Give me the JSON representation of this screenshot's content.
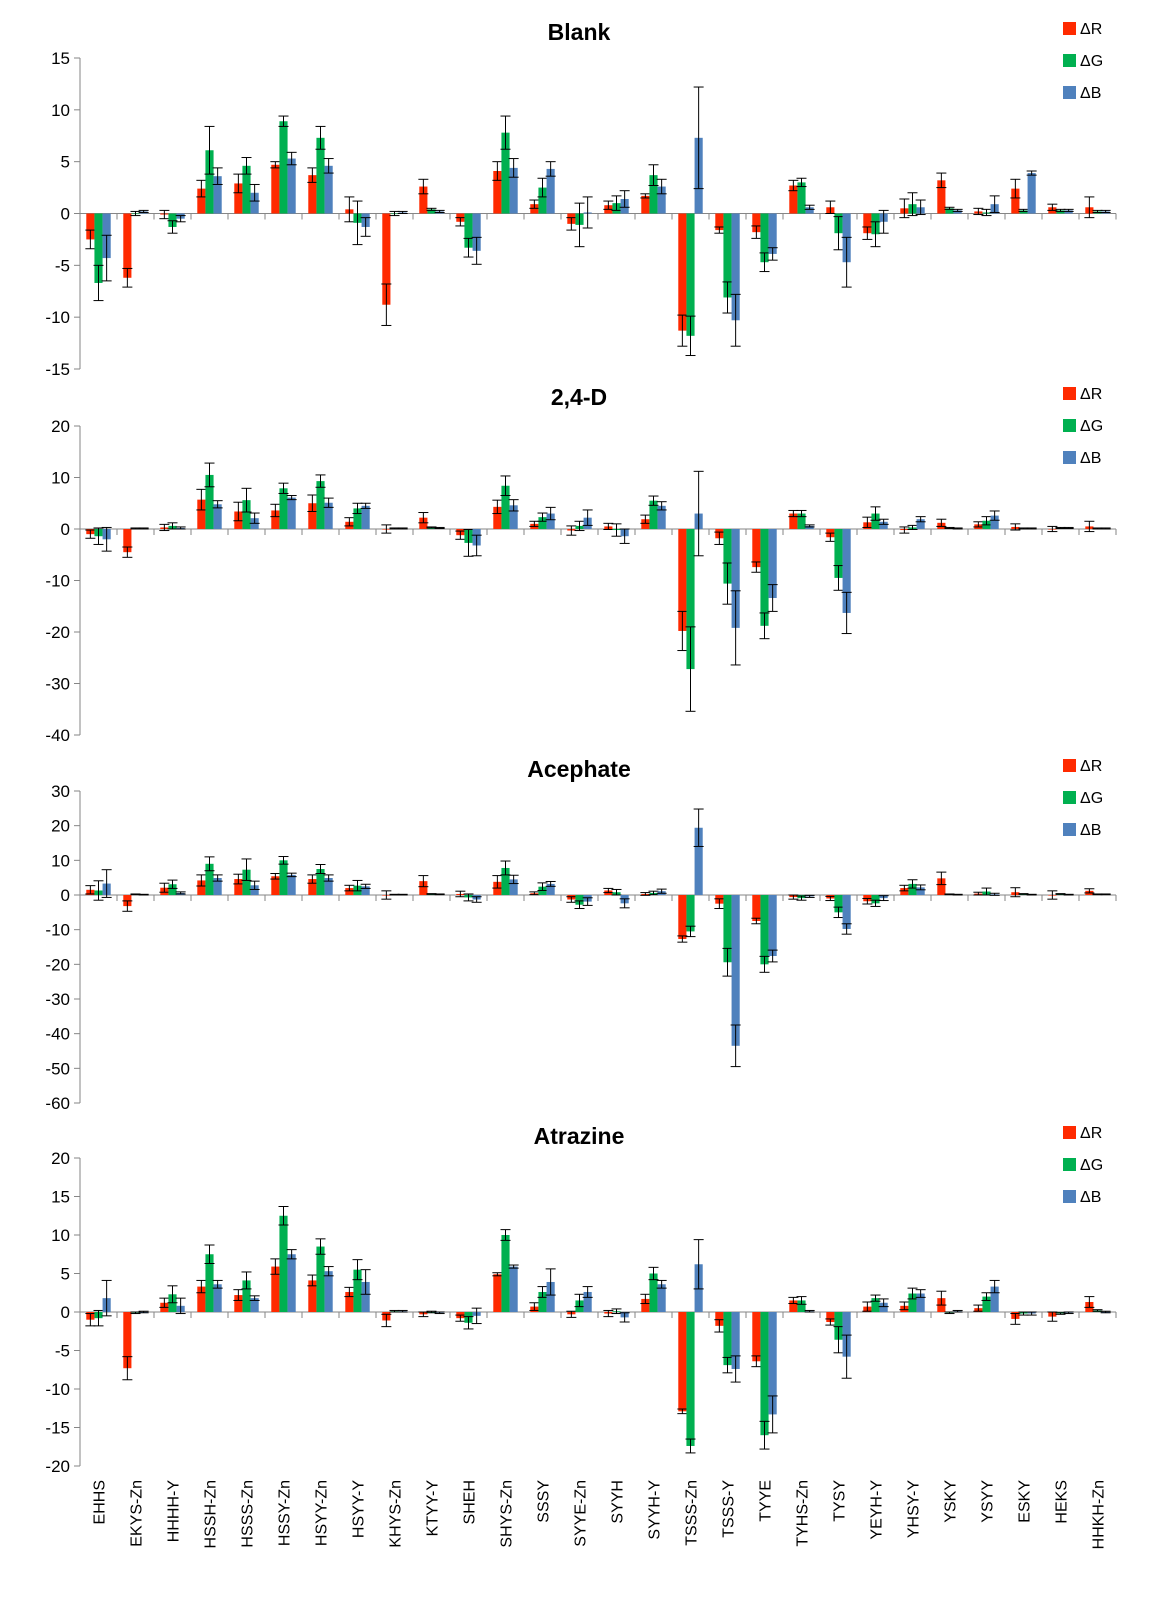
{
  "colors": {
    "ΔR": "#ff2a00",
    "ΔG": "#00b050",
    "ΔB": "#4f81bd"
  },
  "chart_data": [
    {
      "type": "bar",
      "title": "Blank",
      "ylim": [
        -15,
        15
      ],
      "yticks": [
        -15,
        -10,
        -5,
        0,
        5,
        10,
        15
      ],
      "categories": [
        "EHHS",
        "EKYS-Zn",
        "HHHH-Y",
        "HSSH-Zn",
        "HSSS-Zn",
        "HSSY-Zn",
        "HSYY-Zn",
        "HSYY-Y",
        "KHYS-Zn",
        "KTYY-Y",
        "SHEH",
        "SHYS-Zn",
        "SSSY",
        "SYYE-Zn",
        "SYYH",
        "SYYH-Y",
        "TSSS-Zn",
        "TSSS-Y",
        "TYYE",
        "TYHS-Zn",
        "TYSY",
        "YEYH-Y",
        "YHSY-Y",
        "YSKY",
        "YSYY",
        "ESKY",
        "HEKS",
        "HHKH-Zn"
      ],
      "series": [
        {
          "name": "ΔR",
          "values": [
            -2.5,
            -6.2,
            -0.1,
            2.4,
            2.9,
            4.7,
            3.7,
            0.4,
            -8.8,
            2.6,
            -0.8,
            4.1,
            0.9,
            -1.0,
            0.8,
            1.7,
            -11.3,
            -1.6,
            -1.8,
            2.7,
            0.6,
            -1.9,
            0.5,
            3.2,
            0.2,
            2.4,
            0.6,
            0.6
          ],
          "errors": [
            0.9,
            0.9,
            0.4,
            0.8,
            0.9,
            0.3,
            0.7,
            1.2,
            2.0,
            0.7,
            0.4,
            0.9,
            0.4,
            0.6,
            0.4,
            0.2,
            1.5,
            0.3,
            0.6,
            0.5,
            0.6,
            0.6,
            0.9,
            0.7,
            0.3,
            0.9,
            0.3,
            1.0
          ]
        },
        {
          "name": "ΔG",
          "values": [
            -6.7,
            0.0,
            -1.3,
            6.1,
            4.6,
            8.9,
            7.3,
            -0.9,
            0.0,
            0.4,
            -3.3,
            7.8,
            2.5,
            -1.1,
            1.0,
            3.7,
            -11.8,
            -8.1,
            -4.7,
            3.0,
            -1.9,
            -2.0,
            0.9,
            0.5,
            0.1,
            0.3,
            0.3,
            0.2
          ],
          "errors": [
            1.7,
            0.2,
            0.6,
            2.3,
            0.8,
            0.5,
            1.1,
            2.1,
            0.2,
            0.1,
            0.9,
            1.6,
            0.9,
            2.1,
            0.7,
            1.0,
            1.9,
            1.5,
            0.9,
            0.4,
            1.6,
            1.2,
            1.1,
            0.1,
            0.3,
            0.1,
            0.1,
            0.1
          ]
        },
        {
          "name": "ΔB",
          "values": [
            -4.3,
            0.2,
            -0.5,
            3.6,
            2.0,
            5.3,
            4.6,
            -1.3,
            0.1,
            0.2,
            -3.6,
            4.4,
            4.3,
            0.1,
            1.4,
            2.6,
            7.3,
            -10.3,
            -3.9,
            0.6,
            -4.7,
            -0.8,
            0.6,
            0.3,
            0.9,
            3.9,
            0.3,
            0.2
          ],
          "errors": [
            2.2,
            0.1,
            0.3,
            0.8,
            0.8,
            0.6,
            0.7,
            0.9,
            0.1,
            0.1,
            1.3,
            0.9,
            0.7,
            1.5,
            0.8,
            0.7,
            4.9,
            2.5,
            0.6,
            0.2,
            2.4,
            1.1,
            0.7,
            0.1,
            0.8,
            0.2,
            0.1,
            0.1
          ]
        }
      ]
    },
    {
      "type": "bar",
      "title": "2,4-D",
      "ylim": [
        -40,
        20
      ],
      "yticks": [
        -40,
        -30,
        -20,
        -10,
        0,
        10,
        20
      ],
      "categories": [
        "EHHS",
        "EKYS-Zn",
        "HHHH-Y",
        "HSSH-Zn",
        "HSSS-Zn",
        "HSSY-Zn",
        "HSYY-Zn",
        "HSYY-Y",
        "KHYS-Zn",
        "KTYY-Y",
        "SHEH",
        "SHYS-Zn",
        "SSSY",
        "SYYE-Zn",
        "SYYH",
        "SYYH-Y",
        "TSSS-Zn",
        "TSSS-Y",
        "TYYE",
        "TYHS-Zn",
        "TYSY",
        "YEYH-Y",
        "YHSY-Y",
        "YSKY",
        "YSYY",
        "ESKY",
        "HEKS",
        "HHKH-Zn"
      ],
      "series": [
        {
          "name": "ΔR",
          "values": [
            -1.0,
            -4.5,
            0.3,
            5.7,
            3.4,
            3.6,
            5.0,
            1.4,
            0.0,
            2.2,
            -1.2,
            4.3,
            1.0,
            -0.3,
            0.5,
            1.9,
            -19.8,
            -1.8,
            -7.4,
            3.0,
            -1.6,
            1.3,
            -0.2,
            1.2,
            0.9,
            0.4,
            0.0,
            0.5
          ],
          "errors": [
            0.8,
            1.0,
            0.6,
            2.0,
            1.8,
            1.2,
            1.6,
            0.8,
            0.8,
            1.0,
            0.8,
            1.3,
            0.5,
            0.9,
            0.6,
            0.8,
            3.8,
            1.2,
            1.0,
            0.6,
            0.8,
            1.0,
            0.6,
            0.7,
            0.5,
            0.6,
            0.5,
            1.0
          ]
        },
        {
          "name": "ΔG",
          "values": [
            -1.4,
            0.1,
            0.6,
            10.5,
            5.6,
            7.9,
            9.3,
            4.0,
            0.1,
            0.3,
            -2.7,
            8.4,
            2.3,
            0.6,
            -0.2,
            5.5,
            -27.2,
            -10.6,
            -18.8,
            3.0,
            -9.5,
            3.0,
            0.3,
            0.2,
            1.6,
            0.1,
            0.2,
            0.1
          ],
          "errors": [
            1.6,
            0.1,
            0.6,
            2.3,
            2.3,
            1.0,
            1.2,
            1.0,
            0.1,
            0.1,
            2.6,
            1.9,
            0.8,
            0.9,
            1.2,
            0.9,
            8.2,
            4.0,
            2.5,
            0.6,
            2.4,
            1.3,
            0.4,
            0.1,
            0.8,
            0.1,
            0.1,
            0.1
          ]
        },
        {
          "name": "ΔB",
          "values": [
            -2.0,
            0.1,
            0.2,
            4.8,
            2.1,
            6.1,
            5.1,
            4.5,
            0.1,
            0.2,
            -3.2,
            4.6,
            3.0,
            2.2,
            -1.4,
            4.5,
            3.0,
            -19.2,
            -13.4,
            0.6,
            -16.3,
            1.4,
            1.9,
            0.1,
            2.6,
            0.1,
            0.2,
            0.1
          ],
          "errors": [
            2.3,
            0.1,
            0.2,
            0.7,
            1.0,
            0.4,
            0.9,
            0.5,
            0.1,
            0.1,
            2.0,
            1.1,
            1.2,
            1.5,
            1.4,
            0.8,
            8.2,
            7.2,
            2.6,
            0.2,
            4.0,
            0.5,
            0.5,
            0.1,
            0.9,
            0.1,
            0.1,
            0.1
          ]
        }
      ]
    },
    {
      "type": "bar",
      "title": "Acephate",
      "ylim": [
        -60,
        30
      ],
      "yticks": [
        -60,
        -50,
        -40,
        -30,
        -20,
        -10,
        0,
        10,
        20,
        30
      ],
      "categories": [
        "EHHS",
        "EKYS-Zn",
        "HHHH-Y",
        "HSSH-Zn",
        "HSSS-Zn",
        "HSSY-Zn",
        "HSYY-Zn",
        "HSYY-Y",
        "KHYS-Zn",
        "KTYY-Y",
        "SHEH",
        "SHYS-Zn",
        "SSSY",
        "SYYE-Zn",
        "SYYH",
        "SYYH-Y",
        "TSSS-Zn",
        "TSSS-Y",
        "TYYE",
        "TYHS-Zn",
        "TYSY",
        "YEYH-Y",
        "YHSY-Y",
        "YSKY",
        "YSYY",
        "ESKY",
        "HEKS",
        "HHKH-Zn"
      ],
      "series": [
        {
          "name": "ΔR",
          "values": [
            1.5,
            -3.2,
            2.1,
            4.2,
            4.6,
            5.4,
            4.6,
            2.0,
            0.0,
            4.0,
            0.3,
            3.8,
            0.5,
            -1.3,
            1.3,
            0.3,
            -12.7,
            -2.5,
            -7.5,
            -0.6,
            -1.0,
            -1.8,
            2.0,
            4.8,
            0.4,
            0.8,
            0.0,
            1.2
          ],
          "errors": [
            1.2,
            1.5,
            1.3,
            1.6,
            1.4,
            0.8,
            1.2,
            0.8,
            1.2,
            1.6,
            0.8,
            1.8,
            0.4,
            0.8,
            0.6,
            0.4,
            0.9,
            1.4,
            0.8,
            0.6,
            0.6,
            0.8,
            0.8,
            1.8,
            0.4,
            1.3,
            1.2,
            0.6
          ]
        },
        {
          "name": "ΔG",
          "values": [
            1.3,
            0.2,
            3.1,
            9.0,
            7.3,
            10.0,
            7.5,
            2.7,
            0.1,
            0.3,
            -0.7,
            7.8,
            2.4,
            -2.8,
            0.8,
            0.6,
            -10.5,
            -19.4,
            -20.0,
            -0.9,
            -5.0,
            -2.4,
            3.2,
            0.2,
            1.0,
            0.3,
            0.3,
            0.2
          ],
          "errors": [
            2.8,
            0.1,
            1.2,
            2.0,
            3.1,
            1.1,
            1.3,
            1.5,
            0.1,
            0.1,
            1.0,
            2.0,
            1.1,
            1.1,
            0.8,
            0.5,
            1.5,
            4.0,
            2.3,
            0.6,
            1.5,
            0.9,
            1.2,
            0.1,
            1.0,
            0.1,
            0.1,
            0.1
          ]
        },
        {
          "name": "ΔB",
          "values": [
            3.3,
            0.1,
            0.6,
            4.9,
            2.8,
            5.8,
            4.9,
            2.5,
            0.1,
            0.2,
            -1.3,
            4.5,
            3.2,
            -1.9,
            -2.4,
            1.1,
            19.4,
            -43.5,
            -17.6,
            -0.4,
            -9.8,
            -0.9,
            2.2,
            0.1,
            0.2,
            0.1,
            0.1,
            0.2
          ],
          "errors": [
            4.0,
            0.1,
            0.3,
            0.9,
            1.2,
            0.5,
            0.9,
            0.6,
            0.1,
            0.1,
            0.8,
            1.2,
            0.7,
            1.1,
            1.3,
            0.6,
            5.4,
            6.0,
            1.7,
            0.3,
            1.5,
            0.7,
            0.7,
            0.1,
            0.3,
            0.1,
            0.1,
            0.1
          ]
        }
      ]
    },
    {
      "type": "bar",
      "title": "Atrazine",
      "ylim": [
        -20,
        20
      ],
      "yticks": [
        -20,
        -15,
        -10,
        -5,
        0,
        5,
        10,
        15,
        20
      ],
      "categories": [
        "EHHS",
        "EKYS-Zn",
        "HHHH-Y",
        "HSSH-Zn",
        "HSSS-Zn",
        "HSSY-Zn",
        "HSYY-Zn",
        "HSYY-Y",
        "KHYS-Zn",
        "KTYY-Y",
        "SHEH",
        "SHYS-Zn",
        "SSSY",
        "SYYE-Zn",
        "SYYH",
        "SYYH-Y",
        "TSSS-Zn",
        "TSSS-Y",
        "TYYE",
        "TYHS-Zn",
        "TYSY",
        "YEYH-Y",
        "YHSY-Y",
        "YSKY",
        "YSYY",
        "ESKY",
        "HEKS",
        "HHKH-Zn"
      ],
      "series": [
        {
          "name": "ΔR",
          "values": [
            -1.0,
            -7.3,
            1.2,
            3.3,
            2.2,
            5.9,
            4.1,
            2.6,
            -1.1,
            -0.3,
            -0.8,
            4.9,
            0.7,
            -0.3,
            -0.2,
            1.7,
            -12.9,
            -1.8,
            -6.4,
            1.5,
            -1.3,
            0.7,
            0.8,
            1.8,
            0.5,
            -0.9,
            -0.6,
            1.3
          ],
          "errors": [
            0.8,
            1.5,
            0.6,
            0.8,
            0.7,
            1.0,
            0.7,
            0.6,
            0.8,
            0.3,
            0.4,
            0.2,
            0.5,
            0.4,
            0.4,
            0.6,
            0.3,
            0.8,
            0.7,
            0.4,
            0.4,
            0.6,
            0.5,
            0.9,
            0.4,
            0.7,
            0.6,
            0.7
          ]
        },
        {
          "name": "ΔG",
          "values": [
            -0.8,
            -0.1,
            2.3,
            7.5,
            4.1,
            12.5,
            8.5,
            5.5,
            0.1,
            0.0,
            -1.4,
            10.0,
            2.6,
            1.5,
            0.1,
            5.0,
            -17.4,
            -6.9,
            -16.0,
            1.5,
            -3.6,
            1.8,
            2.4,
            -0.1,
            2.0,
            -0.2,
            -0.2,
            0.2
          ],
          "errors": [
            1.0,
            0.1,
            1.1,
            1.2,
            1.1,
            1.2,
            1.0,
            1.3,
            0.1,
            0.1,
            0.8,
            0.7,
            0.7,
            0.8,
            0.3,
            0.8,
            0.9,
            1.0,
            1.8,
            0.5,
            1.7,
            0.4,
            0.7,
            0.1,
            0.5,
            0.2,
            0.1,
            0.1
          ]
        },
        {
          "name": "ΔB",
          "values": [
            1.8,
            0.0,
            0.8,
            3.6,
            1.8,
            7.5,
            5.3,
            3.9,
            0.1,
            -0.1,
            -0.5,
            5.9,
            3.9,
            2.6,
            -0.7,
            3.6,
            6.2,
            -7.4,
            -13.3,
            0.1,
            -5.8,
            1.2,
            2.4,
            0.1,
            3.3,
            -0.2,
            -0.1,
            0.0
          ],
          "errors": [
            2.3,
            0.1,
            1.0,
            0.5,
            0.3,
            0.6,
            0.6,
            1.6,
            0.1,
            0.1,
            1.0,
            0.2,
            1.7,
            0.7,
            0.6,
            0.5,
            3.2,
            1.7,
            2.4,
            0.1,
            2.8,
            0.5,
            0.5,
            0.1,
            0.8,
            0.2,
            0.1,
            0.1
          ]
        }
      ]
    }
  ]
}
